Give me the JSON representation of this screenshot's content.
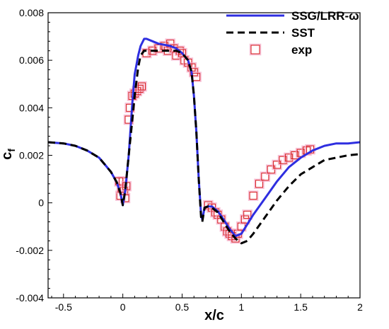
{
  "colors": {
    "ssg": "#2e2ee0",
    "sst": "#000000",
    "exp": "#d61a1a",
    "exp_halo": "#f3a7c4",
    "axis": "#000000"
  },
  "legend": {
    "items": [
      {
        "key": "ssg",
        "label": "SSG/LRR-ω"
      },
      {
        "key": "sst",
        "label": "SST"
      },
      {
        "key": "exp",
        "label": "exp"
      }
    ]
  },
  "axes": {
    "xlabel": "x/c",
    "ylabel_main": "c",
    "ylabel_sub": "f"
  },
  "chart_data": {
    "type": "line",
    "xlim": [
      -0.63,
      2.0
    ],
    "ylim": [
      -0.004,
      0.008
    ],
    "x_ticks": [
      -0.5,
      0,
      0.5,
      1,
      1.5,
      2
    ],
    "x_tick_labels": [
      "-0.5",
      "0",
      "0.5",
      "1",
      "1.5",
      "2"
    ],
    "y_ticks": [
      -0.004,
      -0.002,
      0,
      0.002,
      0.004,
      0.006,
      0.008
    ],
    "y_tick_labels": [
      "-0.004",
      "-0.002",
      "0",
      "0.002",
      "0.004",
      "0.006",
      "0.008"
    ],
    "grid": false,
    "legend_position": "top-right",
    "series": [
      {
        "name": "SSG/LRR-ω",
        "style": "solid",
        "points": [
          [
            -0.63,
            0.00255
          ],
          [
            -0.5,
            0.0025
          ],
          [
            -0.4,
            0.0024
          ],
          [
            -0.3,
            0.0022
          ],
          [
            -0.2,
            0.0019
          ],
          [
            -0.15,
            0.0016
          ],
          [
            -0.1,
            0.0013
          ],
          [
            -0.05,
            0.00085
          ],
          [
            -0.02,
            0.0004
          ],
          [
            0.0,
            -0.0001
          ],
          [
            0.02,
            0.0005
          ],
          [
            0.05,
            0.002
          ],
          [
            0.08,
            0.0042
          ],
          [
            0.1,
            0.0054
          ],
          [
            0.13,
            0.0062
          ],
          [
            0.15,
            0.0066
          ],
          [
            0.18,
            0.0069
          ],
          [
            0.2,
            0.0069
          ],
          [
            0.25,
            0.0068
          ],
          [
            0.3,
            0.0067
          ],
          [
            0.35,
            0.00665
          ],
          [
            0.4,
            0.0066
          ],
          [
            0.45,
            0.0065
          ],
          [
            0.5,
            0.0063
          ],
          [
            0.55,
            0.006
          ],
          [
            0.58,
            0.0055
          ],
          [
            0.6,
            0.0045
          ],
          [
            0.62,
            0.003
          ],
          [
            0.64,
            0.001
          ],
          [
            0.66,
            -0.0005
          ],
          [
            0.67,
            -0.0007
          ],
          [
            0.69,
            -0.0002
          ],
          [
            0.72,
            -0.00015
          ],
          [
            0.75,
            -0.00015
          ],
          [
            0.8,
            -0.00035
          ],
          [
            0.85,
            -0.0007
          ],
          [
            0.9,
            -0.0011
          ],
          [
            0.95,
            -0.0014
          ],
          [
            1.0,
            -0.0013
          ],
          [
            1.05,
            -0.0009
          ],
          [
            1.1,
            -0.0005
          ],
          [
            1.2,
            0.0002
          ],
          [
            1.3,
            0.0009
          ],
          [
            1.4,
            0.0015
          ],
          [
            1.5,
            0.0019
          ],
          [
            1.6,
            0.0022
          ],
          [
            1.7,
            0.0024
          ],
          [
            1.8,
            0.0025
          ],
          [
            1.9,
            0.0025
          ],
          [
            2.0,
            0.00255
          ]
        ]
      },
      {
        "name": "SST",
        "style": "dashed",
        "points": [
          [
            -0.63,
            0.00255
          ],
          [
            -0.5,
            0.0025
          ],
          [
            -0.4,
            0.0024
          ],
          [
            -0.3,
            0.0022
          ],
          [
            -0.2,
            0.0019
          ],
          [
            -0.15,
            0.0016
          ],
          [
            -0.1,
            0.0013
          ],
          [
            -0.05,
            0.00085
          ],
          [
            -0.02,
            0.0004
          ],
          [
            0.0,
            -0.0001
          ],
          [
            0.02,
            0.0005
          ],
          [
            0.05,
            0.002
          ],
          [
            0.08,
            0.0035
          ],
          [
            0.1,
            0.0045
          ],
          [
            0.13,
            0.0057
          ],
          [
            0.15,
            0.0062
          ],
          [
            0.18,
            0.0064
          ],
          [
            0.2,
            0.0064
          ],
          [
            0.25,
            0.0064
          ],
          [
            0.3,
            0.0064
          ],
          [
            0.35,
            0.0064
          ],
          [
            0.4,
            0.0064
          ],
          [
            0.45,
            0.0064
          ],
          [
            0.5,
            0.0063
          ],
          [
            0.55,
            0.006
          ],
          [
            0.58,
            0.0055
          ],
          [
            0.6,
            0.0045
          ],
          [
            0.62,
            0.003
          ],
          [
            0.64,
            0.001
          ],
          [
            0.66,
            -0.0006
          ],
          [
            0.67,
            -0.0008
          ],
          [
            0.69,
            -0.0002
          ],
          [
            0.72,
            -0.00015
          ],
          [
            0.75,
            -0.0002
          ],
          [
            0.8,
            -0.0004
          ],
          [
            0.85,
            -0.0008
          ],
          [
            0.9,
            -0.0012
          ],
          [
            0.95,
            -0.0015
          ],
          [
            1.0,
            -0.0017
          ],
          [
            1.05,
            -0.0016
          ],
          [
            1.1,
            -0.0013
          ],
          [
            1.2,
            -0.0006
          ],
          [
            1.3,
            0.0001
          ],
          [
            1.4,
            0.0007
          ],
          [
            1.5,
            0.0012
          ],
          [
            1.6,
            0.0015
          ],
          [
            1.7,
            0.0018
          ],
          [
            1.8,
            0.0019
          ],
          [
            1.9,
            0.002
          ],
          [
            2.0,
            0.00205
          ]
        ]
      },
      {
        "name": "exp",
        "style": "markers",
        "points": [
          [
            -0.02,
            0.0003
          ],
          [
            -0.01,
            0.0006
          ],
          [
            0.0,
            0.0009
          ],
          [
            0.01,
            0.0005
          ],
          [
            -0.03,
            0.0009
          ],
          [
            0.02,
            0.0002
          ],
          [
            0.03,
            0.0007
          ],
          [
            0.05,
            0.0035
          ],
          [
            0.06,
            0.004
          ],
          [
            0.08,
            0.0045
          ],
          [
            0.1,
            0.0046
          ],
          [
            0.12,
            0.0047
          ],
          [
            0.14,
            0.0048
          ],
          [
            0.16,
            0.0049
          ],
          [
            0.2,
            0.0063
          ],
          [
            0.25,
            0.0064
          ],
          [
            0.3,
            0.0065
          ],
          [
            0.35,
            0.0066
          ],
          [
            0.38,
            0.0064
          ],
          [
            0.4,
            0.0067
          ],
          [
            0.43,
            0.0065
          ],
          [
            0.45,
            0.0062
          ],
          [
            0.48,
            0.0064
          ],
          [
            0.5,
            0.0063
          ],
          [
            0.52,
            0.006
          ],
          [
            0.55,
            0.0059
          ],
          [
            0.58,
            0.0057
          ],
          [
            0.6,
            0.0055
          ],
          [
            0.62,
            0.0053
          ],
          [
            0.72,
            -0.0001
          ],
          [
            0.75,
            -0.0002
          ],
          [
            0.78,
            -0.0004
          ],
          [
            0.8,
            -0.0005
          ],
          [
            0.83,
            -0.0007
          ],
          [
            0.86,
            -0.001
          ],
          [
            0.88,
            -0.0012
          ],
          [
            0.9,
            -0.0013
          ],
          [
            0.92,
            -0.0014
          ],
          [
            0.95,
            -0.0015
          ],
          [
            0.97,
            -0.0013
          ],
          [
            1.0,
            -0.001
          ],
          [
            1.03,
            -0.0007
          ],
          [
            1.05,
            -0.0005
          ],
          [
            1.1,
            0.0003
          ],
          [
            1.15,
            0.0008
          ],
          [
            1.2,
            0.0011
          ],
          [
            1.25,
            0.0014
          ],
          [
            1.3,
            0.0016
          ],
          [
            1.35,
            0.0018
          ],
          [
            1.4,
            0.0019
          ],
          [
            1.45,
            0.002
          ],
          [
            1.5,
            0.0021
          ],
          [
            1.55,
            0.0022
          ],
          [
            1.58,
            0.00225
          ]
        ]
      }
    ]
  }
}
